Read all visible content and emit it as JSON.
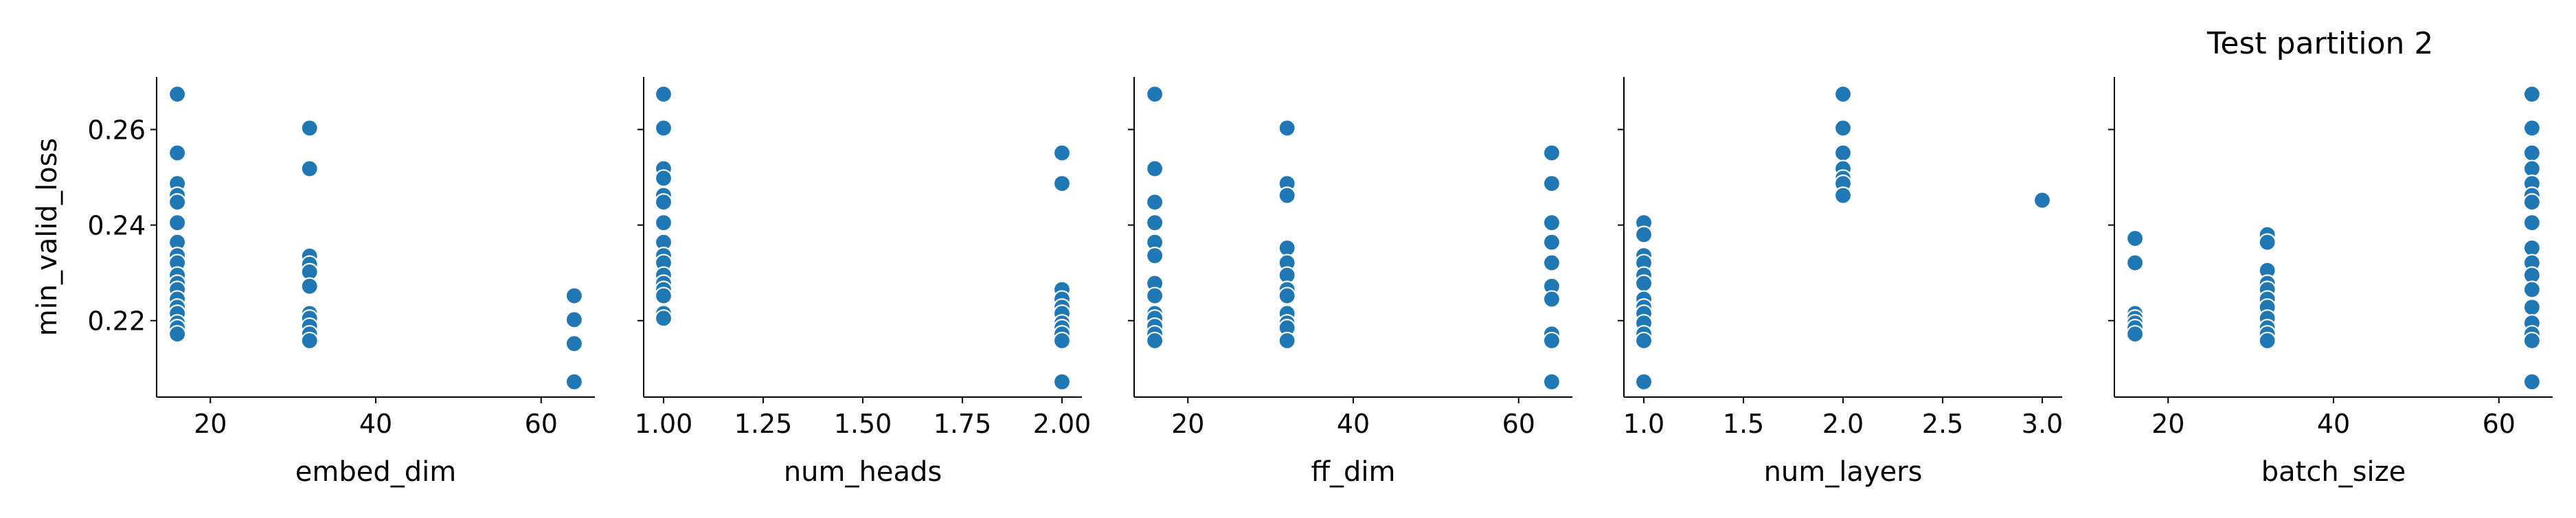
{
  "title": "Test partition 2",
  "chart_data": {
    "type": "scatter",
    "shared_ylabel": "min_valid_loss",
    "ylim": [
      0.204,
      0.271
    ],
    "yticks": [
      0.22,
      0.24,
      0.26
    ],
    "ytick_labels": [
      "0.22",
      "0.24",
      "0.26"
    ],
    "grid": false,
    "legend": "none",
    "marker_color": "#1f77b4",
    "panels": [
      {
        "xlabel": "embed_dim",
        "xlim": [
          13.5,
          66.5
        ],
        "xticks": [
          20,
          40,
          60
        ],
        "xtick_labels": [
          "20",
          "40",
          "60"
        ],
        "points": [
          [
            16,
            0.2674
          ],
          [
            16,
            0.2551
          ],
          [
            16,
            0.2487
          ],
          [
            16,
            0.2462
          ],
          [
            16,
            0.2448
          ],
          [
            16,
            0.2405
          ],
          [
            16,
            0.2364
          ],
          [
            16,
            0.2336
          ],
          [
            16,
            0.2321
          ],
          [
            16,
            0.2295
          ],
          [
            16,
            0.2278
          ],
          [
            16,
            0.2265
          ],
          [
            16,
            0.2245
          ],
          [
            16,
            0.2228
          ],
          [
            16,
            0.2215
          ],
          [
            16,
            0.2195
          ],
          [
            16,
            0.2185
          ],
          [
            16,
            0.2172
          ],
          [
            32,
            0.2603
          ],
          [
            32,
            0.2518
          ],
          [
            32,
            0.2335
          ],
          [
            32,
            0.2318
          ],
          [
            32,
            0.2302
          ],
          [
            32,
            0.2272
          ],
          [
            32,
            0.2215
          ],
          [
            32,
            0.2205
          ],
          [
            32,
            0.2188
          ],
          [
            32,
            0.2172
          ],
          [
            32,
            0.2158
          ],
          [
            64,
            0.2252
          ],
          [
            64,
            0.2202
          ],
          [
            64,
            0.2152
          ],
          [
            64,
            0.2072
          ]
        ]
      },
      {
        "xlabel": "num_heads",
        "xlim": [
          0.95,
          2.05
        ],
        "xticks": [
          1.0,
          1.25,
          1.5,
          1.75,
          2.0
        ],
        "xtick_labels": [
          "1.00",
          "1.25",
          "1.50",
          "1.75",
          "2.00"
        ],
        "points": [
          [
            1,
            0.2674
          ],
          [
            1,
            0.2603
          ],
          [
            1,
            0.2518
          ],
          [
            1,
            0.2498
          ],
          [
            1,
            0.2462
          ],
          [
            1,
            0.2448
          ],
          [
            1,
            0.2405
          ],
          [
            1,
            0.2364
          ],
          [
            1,
            0.2336
          ],
          [
            1,
            0.2321
          ],
          [
            1,
            0.2295
          ],
          [
            1,
            0.2278
          ],
          [
            1,
            0.2265
          ],
          [
            1,
            0.2252
          ],
          [
            1,
            0.2215
          ],
          [
            1,
            0.2205
          ],
          [
            2,
            0.2551
          ],
          [
            2,
            0.2487
          ],
          [
            2,
            0.2265
          ],
          [
            2,
            0.2245
          ],
          [
            2,
            0.2228
          ],
          [
            2,
            0.2215
          ],
          [
            2,
            0.2195
          ],
          [
            2,
            0.2185
          ],
          [
            2,
            0.2172
          ],
          [
            2,
            0.2158
          ],
          [
            2,
            0.2072
          ]
        ]
      },
      {
        "xlabel": "ff_dim",
        "xlim": [
          13.5,
          66.5
        ],
        "xticks": [
          20,
          40,
          60
        ],
        "xtick_labels": [
          "20",
          "40",
          "60"
        ],
        "points": [
          [
            16,
            0.2674
          ],
          [
            16,
            0.2518
          ],
          [
            16,
            0.2448
          ],
          [
            16,
            0.2405
          ],
          [
            16,
            0.2364
          ],
          [
            16,
            0.2336
          ],
          [
            16,
            0.2278
          ],
          [
            16,
            0.2252
          ],
          [
            16,
            0.2215
          ],
          [
            16,
            0.2205
          ],
          [
            16,
            0.2188
          ],
          [
            16,
            0.2172
          ],
          [
            16,
            0.2158
          ],
          [
            32,
            0.2603
          ],
          [
            32,
            0.2487
          ],
          [
            32,
            0.2462
          ],
          [
            32,
            0.2352
          ],
          [
            32,
            0.2321
          ],
          [
            32,
            0.2295
          ],
          [
            32,
            0.2265
          ],
          [
            32,
            0.2252
          ],
          [
            32,
            0.2215
          ],
          [
            32,
            0.2195
          ],
          [
            32,
            0.2185
          ],
          [
            32,
            0.2158
          ],
          [
            64,
            0.2551
          ],
          [
            64,
            0.2487
          ],
          [
            64,
            0.2405
          ],
          [
            64,
            0.2364
          ],
          [
            64,
            0.2321
          ],
          [
            64,
            0.2272
          ],
          [
            64,
            0.2245
          ],
          [
            64,
            0.2172
          ],
          [
            64,
            0.2158
          ],
          [
            64,
            0.2072
          ]
        ]
      },
      {
        "xlabel": "num_layers",
        "xlim": [
          0.9,
          3.1
        ],
        "xticks": [
          1.0,
          1.5,
          2.0,
          2.5,
          3.0
        ],
        "xtick_labels": [
          "1.0",
          "1.5",
          "2.0",
          "2.5",
          "3.0"
        ],
        "points": [
          [
            1,
            0.2405
          ],
          [
            1,
            0.238
          ],
          [
            1,
            0.2336
          ],
          [
            1,
            0.2321
          ],
          [
            1,
            0.2295
          ],
          [
            1,
            0.2278
          ],
          [
            1,
            0.2245
          ],
          [
            1,
            0.2228
          ],
          [
            1,
            0.2215
          ],
          [
            1,
            0.2195
          ],
          [
            1,
            0.2172
          ],
          [
            1,
            0.2158
          ],
          [
            1,
            0.2072
          ],
          [
            2,
            0.2674
          ],
          [
            2,
            0.2603
          ],
          [
            2,
            0.2551
          ],
          [
            2,
            0.2518
          ],
          [
            2,
            0.2498
          ],
          [
            2,
            0.2487
          ],
          [
            2,
            0.2462
          ],
          [
            3,
            0.2452
          ]
        ]
      },
      {
        "xlabel": "batch_size",
        "xlim": [
          13.5,
          66.5
        ],
        "xticks": [
          20,
          40,
          60
        ],
        "xtick_labels": [
          "20",
          "40",
          "60"
        ],
        "points": [
          [
            16,
            0.2372
          ],
          [
            16,
            0.2321
          ],
          [
            16,
            0.2215
          ],
          [
            16,
            0.2205
          ],
          [
            16,
            0.2195
          ],
          [
            16,
            0.2185
          ],
          [
            16,
            0.2172
          ],
          [
            32,
            0.238
          ],
          [
            32,
            0.2364
          ],
          [
            32,
            0.2305
          ],
          [
            32,
            0.2278
          ],
          [
            32,
            0.2265
          ],
          [
            32,
            0.2245
          ],
          [
            32,
            0.2228
          ],
          [
            32,
            0.2205
          ],
          [
            32,
            0.2185
          ],
          [
            32,
            0.2172
          ],
          [
            32,
            0.2158
          ],
          [
            64,
            0.2674
          ],
          [
            64,
            0.2603
          ],
          [
            64,
            0.2551
          ],
          [
            64,
            0.2518
          ],
          [
            64,
            0.2487
          ],
          [
            64,
            0.2462
          ],
          [
            64,
            0.2448
          ],
          [
            64,
            0.2405
          ],
          [
            64,
            0.2352
          ],
          [
            64,
            0.2321
          ],
          [
            64,
            0.2295
          ],
          [
            64,
            0.2265
          ],
          [
            64,
            0.2228
          ],
          [
            64,
            0.2195
          ],
          [
            64,
            0.2172
          ],
          [
            64,
            0.2158
          ],
          [
            64,
            0.2072
          ]
        ]
      }
    ]
  }
}
